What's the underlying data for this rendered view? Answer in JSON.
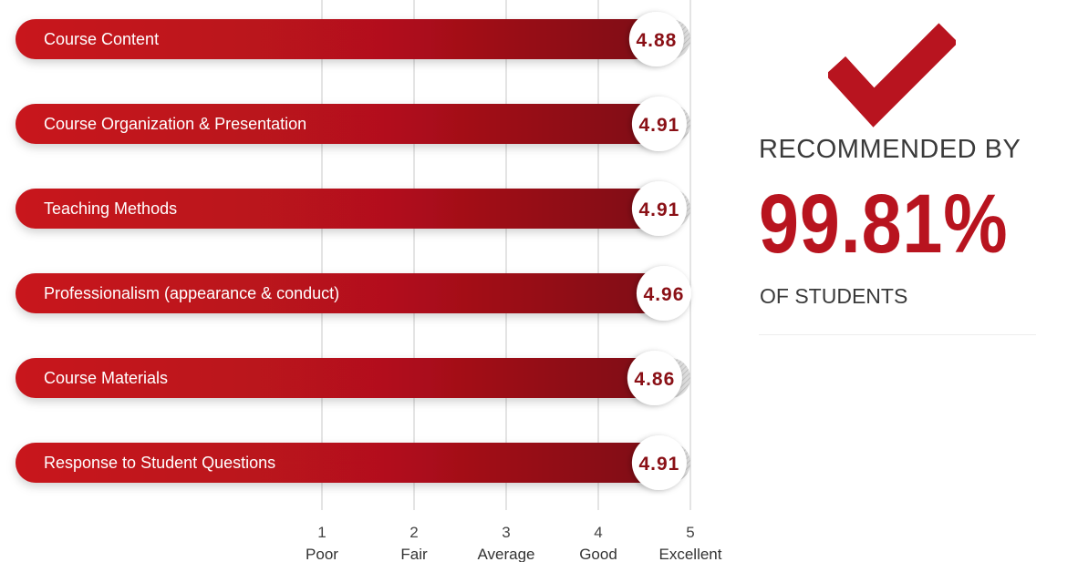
{
  "chart_data": {
    "type": "bar",
    "orientation": "horizontal",
    "categories": [
      "Course Content",
      "Course Organization & Presentation",
      "Teaching Methods",
      "Professionalism (appearance & conduct)",
      "Course Materials",
      "Response to Student Questions"
    ],
    "values": [
      4.88,
      4.91,
      4.91,
      4.96,
      4.86,
      4.91
    ],
    "value_labels": [
      "4.88",
      "4.91",
      "4.91",
      "4.96",
      "4.86",
      "4.91"
    ],
    "xlim": [
      0,
      5
    ],
    "ticks": [
      {
        "value": 1,
        "number": "1",
        "label": "Poor"
      },
      {
        "value": 2,
        "number": "2",
        "label": "Fair"
      },
      {
        "value": 3,
        "number": "3",
        "label": "Average"
      },
      {
        "value": 4,
        "number": "4",
        "label": "Good"
      },
      {
        "value": 5,
        "number": "5",
        "label": "Excellent"
      }
    ],
    "grid": true
  },
  "summary": {
    "title": "RECOMMENDED BY",
    "percentage": "99.81%",
    "subtitle": "OF STUDENTS",
    "icon": "checkmark-icon"
  },
  "colors": {
    "bar_start": "#c8141f",
    "bar_end": "#7a0710",
    "track": "#d6d6d6",
    "score_text": "#8a1016",
    "accent": "#b8141f"
  }
}
